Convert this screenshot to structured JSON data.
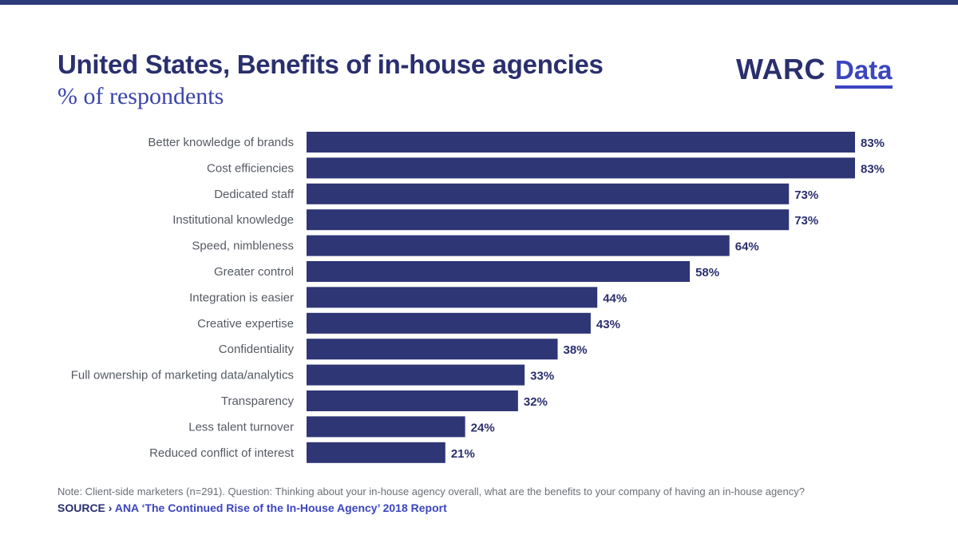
{
  "header": {
    "title": "United States, Benefits of in-house agencies",
    "subtitle": "% of respondents"
  },
  "logo": {
    "brand": "WARC",
    "product": "Data"
  },
  "colors": {
    "bar": "#2e3676",
    "value_text": "#2a2f6e",
    "category_text": "#555a62",
    "accent": "#3b45c0"
  },
  "chart_data": {
    "type": "bar",
    "orientation": "horizontal",
    "title": "United States, Benefits of in-house agencies",
    "subtitle": "% of respondents",
    "xlabel": "",
    "ylabel": "",
    "xlim": [
      0,
      83
    ],
    "grid": false,
    "legend": "none",
    "categories": [
      "Better knowledge of brands",
      "Cost efficiencies",
      "Dedicated staff",
      "Institutional knowledge",
      "Speed, nimbleness",
      "Greater control",
      "Integration is easier",
      "Creative expertise",
      "Confidentiality",
      "Full ownership of marketing data/analytics",
      "Transparency",
      "Less talent turnover",
      "Reduced conflict of interest"
    ],
    "values": [
      83,
      83,
      73,
      73,
      64,
      58,
      44,
      43,
      38,
      33,
      32,
      24,
      21
    ],
    "value_labels": [
      "83%",
      "83%",
      "73%",
      "73%",
      "64%",
      "58%",
      "44%",
      "43%",
      "38%",
      "33%",
      "32%",
      "24%",
      "21%"
    ]
  },
  "footer": {
    "note": "Note: Client-side marketers (n=291). Question: Thinking about your in-house agency overall, what are the benefits to your company of having an in-house agency?",
    "source_label": "SOURCE ›",
    "source_text": "ANA ‘The Continued Rise of the In-House Agency’ 2018 Report"
  }
}
